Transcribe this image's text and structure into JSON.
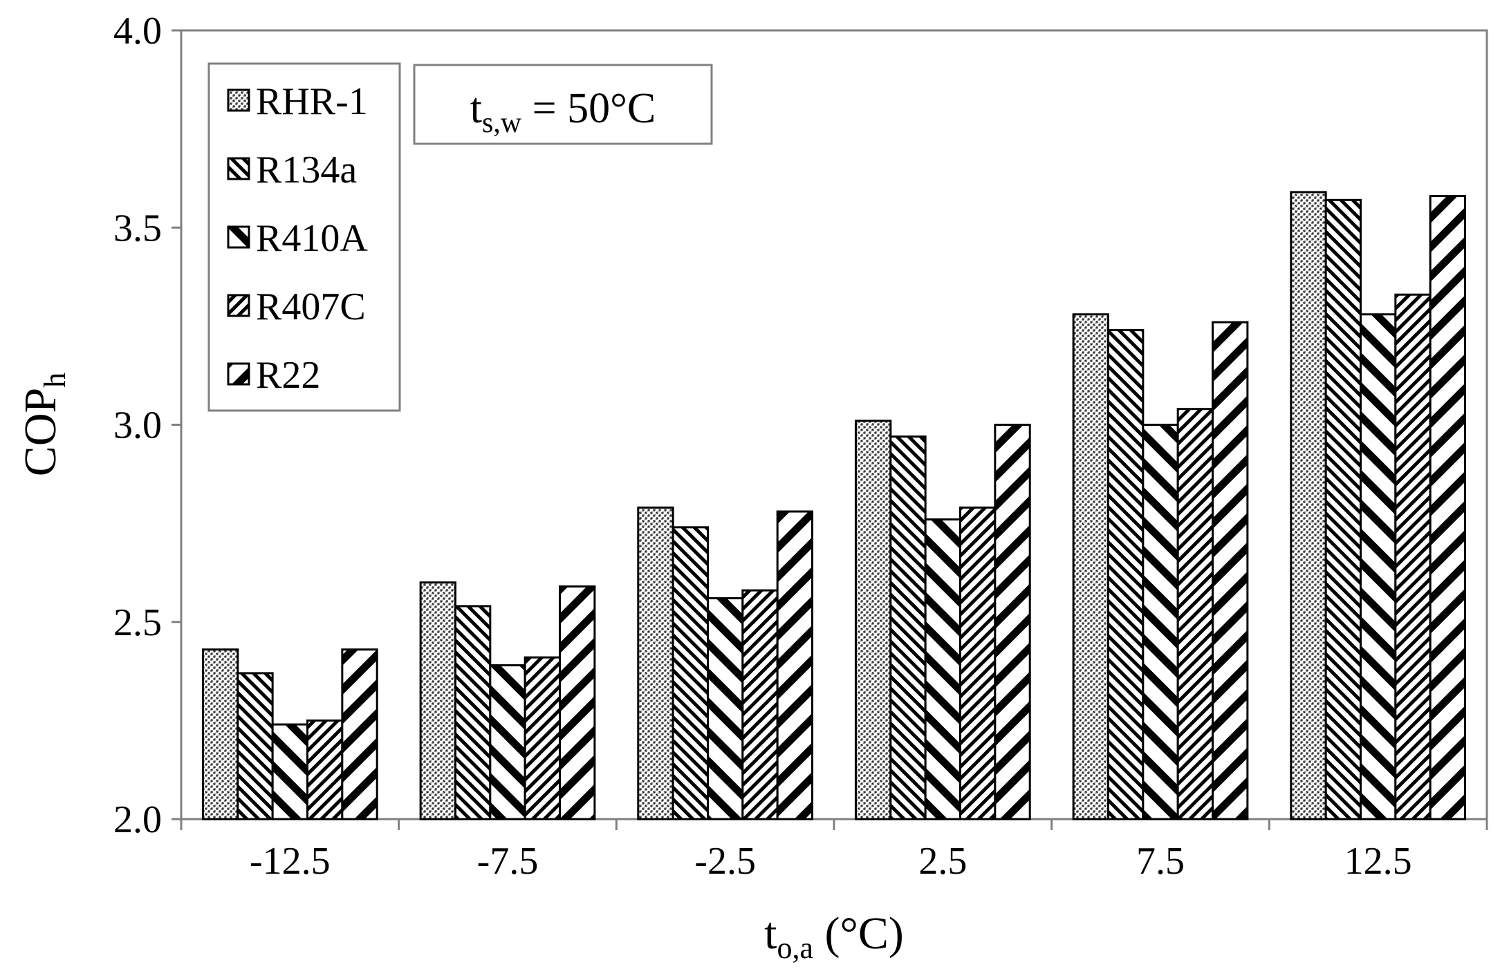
{
  "chart_data": {
    "type": "bar",
    "categories": [
      "-12.5",
      "-7.5",
      "-2.5",
      "2.5",
      "7.5",
      "12.5"
    ],
    "series": [
      {
        "name": "RHR-1",
        "pattern": "dots",
        "values": [
          2.43,
          2.6,
          2.79,
          3.01,
          3.28,
          3.59
        ]
      },
      {
        "name": "R134a",
        "pattern": "diag",
        "values": [
          2.37,
          2.54,
          2.74,
          2.97,
          3.24,
          3.57
        ]
      },
      {
        "name": "R410A",
        "pattern": "wide",
        "values": [
          2.24,
          2.39,
          2.56,
          2.76,
          3.0,
          3.28
        ]
      },
      {
        "name": "R407C",
        "pattern": "back",
        "values": [
          2.25,
          2.41,
          2.58,
          2.79,
          3.04,
          3.33
        ]
      },
      {
        "name": "R22",
        "pattern": "wideback",
        "values": [
          2.43,
          2.59,
          2.78,
          3.0,
          3.26,
          3.58
        ]
      }
    ],
    "ylim": [
      2.0,
      4.0
    ],
    "yticks": [
      "2.0",
      "2.5",
      "3.0",
      "3.5",
      "4.0"
    ],
    "ytick_values": [
      2.0,
      2.5,
      3.0,
      3.5,
      4.0
    ],
    "xlabel": {
      "main": "t",
      "sub": "o,a",
      "rest": " (°C)"
    },
    "ylabel": {
      "main": "COP",
      "sub": "h"
    },
    "annotation": {
      "main": "t",
      "sub": "s,w",
      "rest": " = 50°C"
    },
    "legend_position": "top-left",
    "grid": false,
    "colors": {
      "bar_stroke": "#000000",
      "frame": "#808080",
      "background": "#ffffff"
    }
  }
}
